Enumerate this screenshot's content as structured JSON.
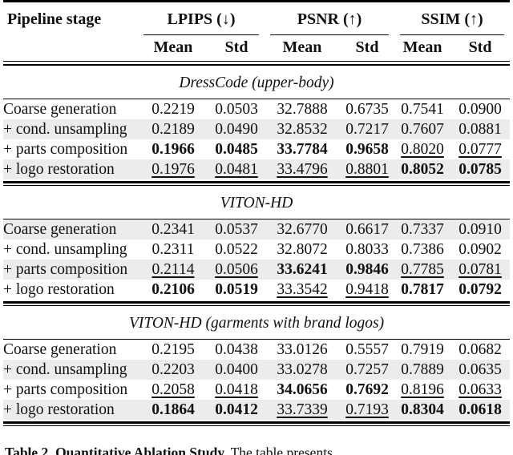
{
  "table": {
    "header": {
      "stage_col": "Pipeline stage",
      "groups": [
        "LPIPS (↓)",
        "PSNR (↑)",
        "SSIM (↑)"
      ],
      "subheaders": [
        "Mean",
        "Std"
      ]
    },
    "sections": [
      {
        "title": "DressCode (upper-body)",
        "rows": [
          {
            "stage": "Coarse generation",
            "shaded": false,
            "values": [
              "0.2219",
              "0.0503",
              "32.7888",
              "0.6735",
              "0.7541",
              "0.0900"
            ],
            "fmt": [
              "p",
              "p",
              "p",
              "p",
              "p",
              "p"
            ]
          },
          {
            "stage": "+ cond. unsampling",
            "shaded": true,
            "values": [
              "0.2189",
              "0.0490",
              "32.8532",
              "0.7217",
              "0.7607",
              "0.0881"
            ],
            "fmt": [
              "p",
              "p",
              "p",
              "p",
              "p",
              "p"
            ]
          },
          {
            "stage": "+ parts composition",
            "shaded": false,
            "values": [
              "0.1966",
              "0.0485",
              "33.7784",
              "0.9658",
              "0.8020",
              "0.0777"
            ],
            "fmt": [
              "b",
              "b",
              "b",
              "b",
              "u",
              "u"
            ]
          },
          {
            "stage": "+ logo restoration",
            "shaded": true,
            "values": [
              "0.1976",
              "0.0481",
              "33.4796",
              "0.8801",
              "0.8052",
              "0.0785"
            ],
            "fmt": [
              "u",
              "u",
              "u",
              "u",
              "b",
              "b"
            ]
          }
        ]
      },
      {
        "title": "VITON-HD",
        "rows": [
          {
            "stage": "Coarse generation",
            "shaded": true,
            "values": [
              "0.2341",
              "0.0537",
              "32.6770",
              "0.6617",
              "0.7337",
              "0.0910"
            ],
            "fmt": [
              "p",
              "p",
              "p",
              "p",
              "p",
              "p"
            ]
          },
          {
            "stage": "+ cond. unsampling",
            "shaded": false,
            "values": [
              "0.2311",
              "0.0522",
              "32.8072",
              "0.8033",
              "0.7386",
              "0.0902"
            ],
            "fmt": [
              "p",
              "p",
              "p",
              "p",
              "p",
              "p"
            ]
          },
          {
            "stage": "+ parts composition",
            "shaded": true,
            "values": [
              "0.2114",
              "0.0506",
              "33.6241",
              "0.9846",
              "0.7785",
              "0.0781"
            ],
            "fmt": [
              "u",
              "u",
              "b",
              "b",
              "u",
              "u"
            ]
          },
          {
            "stage": "+ logo restoration",
            "shaded": false,
            "values": [
              "0.2106",
              "0.0519",
              "33.3542",
              "0.9418",
              "0.7817",
              "0.0792"
            ],
            "fmt": [
              "b",
              "b",
              "u",
              "u",
              "b",
              "b"
            ]
          }
        ]
      },
      {
        "title": "VITON-HD (garments with brand logos)",
        "rows": [
          {
            "stage": "Coarse generation",
            "shaded": false,
            "values": [
              "0.2195",
              "0.0438",
              "33.0126",
              "0.5557",
              "0.7919",
              "0.0682"
            ],
            "fmt": [
              "p",
              "p",
              "p",
              "p",
              "p",
              "p"
            ]
          },
          {
            "stage": "+ cond. unsampling",
            "shaded": true,
            "values": [
              "0.2203",
              "0.0400",
              "33.0278",
              "0.7257",
              "0.7889",
              "0.0635"
            ],
            "fmt": [
              "p",
              "p",
              "p",
              "p",
              "p",
              "p"
            ]
          },
          {
            "stage": "+ parts composition",
            "shaded": false,
            "values": [
              "0.2058",
              "0.0418",
              "34.0656",
              "0.7692",
              "0.8196",
              "0.0633"
            ],
            "fmt": [
              "u",
              "u",
              "b",
              "b",
              "u",
              "u"
            ]
          },
          {
            "stage": "+ logo restoration",
            "shaded": true,
            "values": [
              "0.1864",
              "0.0412",
              "33.7339",
              "0.7193",
              "0.8304",
              "0.0618"
            ],
            "fmt": [
              "b",
              "b",
              "u",
              "u",
              "b",
              "b"
            ]
          }
        ]
      }
    ]
  },
  "caption": {
    "label": "Table 2.",
    "title": "Quantitative Ablation Study.",
    "text": "The table presents"
  },
  "colors": {
    "row_shade": "#ececec",
    "text": "#111111",
    "rule": "#000000"
  }
}
